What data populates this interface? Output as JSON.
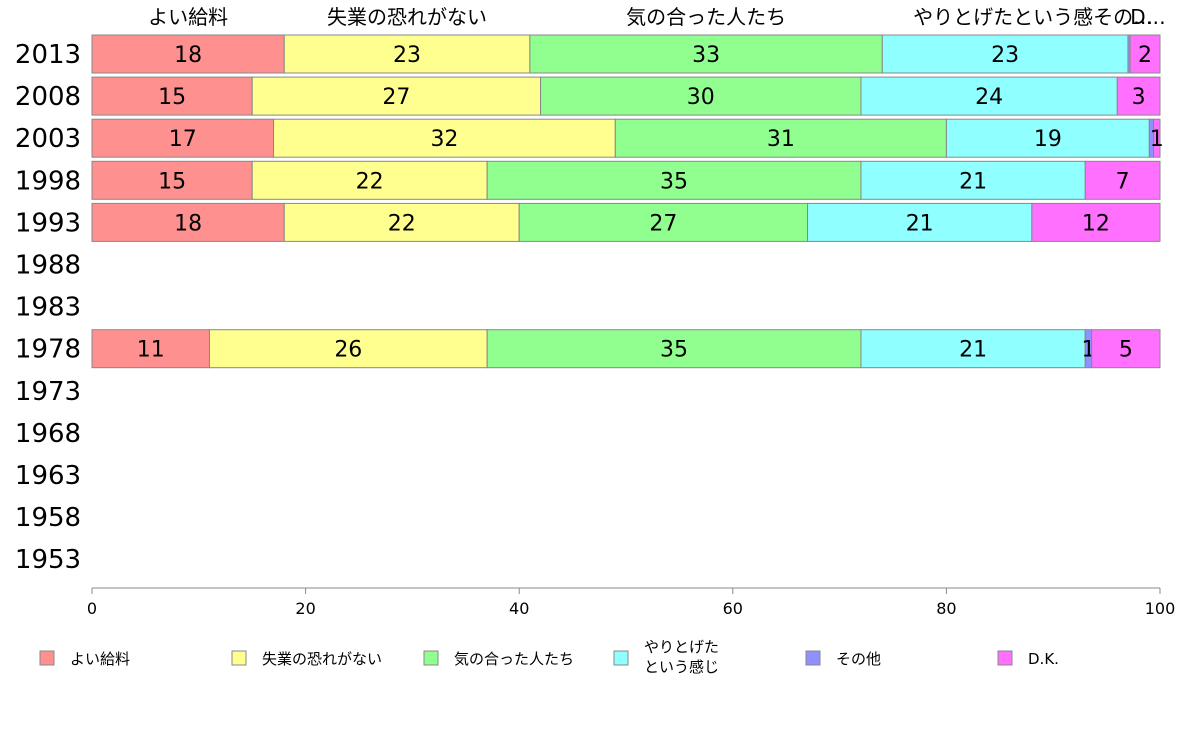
{
  "chart_data": {
    "type": "bar",
    "orientation": "horizontal",
    "stacked": true,
    "categories": [
      "2013",
      "2008",
      "2003",
      "1998",
      "1993",
      "1988",
      "1983",
      "1978",
      "1973",
      "1968",
      "1963",
      "1958",
      "1953"
    ],
    "series": [
      {
        "name": "よい給料",
        "legend_lines": [
          "よい給料"
        ],
        "color": "#ff9090",
        "values": [
          18,
          15,
          17,
          15,
          18,
          null,
          null,
          11,
          null,
          null,
          null,
          null,
          null
        ]
      },
      {
        "name": "失業の恐れがない",
        "legend_lines": [
          "失業の恐れがない"
        ],
        "color": "#ffff90",
        "values": [
          23,
          27,
          32,
          22,
          22,
          null,
          null,
          26,
          null,
          null,
          null,
          null,
          null
        ]
      },
      {
        "name": "気の合った人たち",
        "legend_lines": [
          "気の合った人たち"
        ],
        "color": "#90ff90",
        "values": [
          33,
          30,
          31,
          35,
          27,
          null,
          null,
          35,
          null,
          null,
          null,
          null,
          null
        ]
      },
      {
        "name": "やりとげたという感じ",
        "legend_lines": [
          "やりとげた",
          "という感じ"
        ],
        "color": "#90ffff",
        "values": [
          23,
          24,
          19,
          21,
          21,
          null,
          null,
          21,
          null,
          null,
          null,
          null,
          null
        ]
      },
      {
        "name": "その他",
        "legend_lines": [
          "その他"
        ],
        "color": "#9090ff",
        "values": [
          0.2,
          null,
          0.4,
          null,
          null,
          null,
          null,
          0.6,
          null,
          null,
          null,
          null,
          null
        ]
      },
      {
        "name": "D.K.",
        "legend_lines": [
          "D.K."
        ],
        "color": "#ff70ff",
        "values": [
          2,
          3,
          1,
          7,
          12,
          null,
          null,
          5,
          null,
          null,
          null,
          null,
          null
        ]
      }
    ],
    "data_labels": {
      "2013": [
        "18",
        "23",
        "33",
        "23",
        "",
        "2"
      ],
      "2008": [
        "15",
        "27",
        "30",
        "24",
        "",
        "3"
      ],
      "2003": [
        "17",
        "32",
        "31",
        "19",
        "",
        "1"
      ],
      "1998": [
        "15",
        "22",
        "35",
        "21",
        "",
        "7"
      ],
      "1993": [
        "18",
        "22",
        "27",
        "21",
        "",
        "12"
      ],
      "1978": [
        "11",
        "26",
        "35",
        "21",
        "1",
        "5"
      ]
    },
    "header_labels": [
      "よい給料",
      "失業の恐れがない",
      "気の合った人たち",
      "やりとげたという感その…",
      "D…"
    ],
    "xlim": [
      0,
      100
    ],
    "xticks": [
      0,
      20,
      40,
      60,
      80,
      100
    ],
    "grid": false,
    "legend_position": "bottom"
  }
}
